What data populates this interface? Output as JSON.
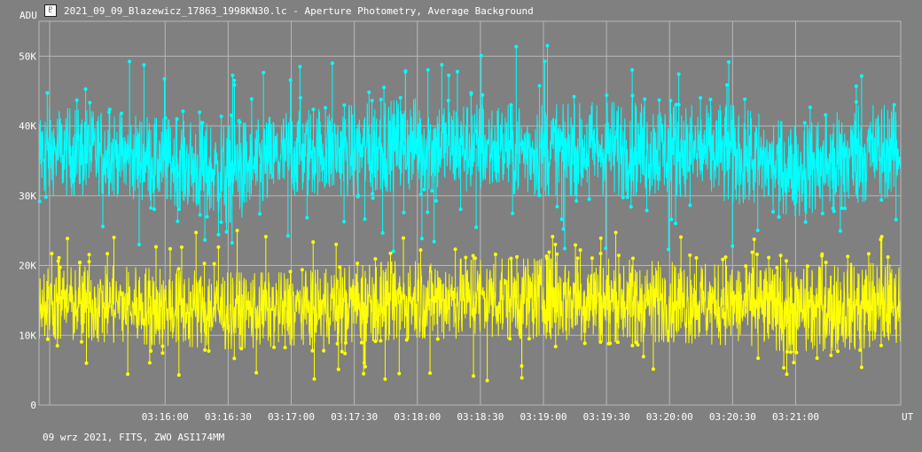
{
  "window": {
    "title": "2021_09_09_Blazewicz_17863_1998KN30.lc - Aperture Photometry, Average Background",
    "icon": "lightcurve-app-icon"
  },
  "footer": {
    "text": "09 wrz 2021, FITS, ZWO ASI174MM"
  },
  "chart_data": {
    "type": "line",
    "title": "2021_09_09_Blazewicz_17863_1998KN30.lc - Aperture Photometry, Average Background",
    "ylabel": "ADU",
    "xlabel": "UT",
    "x_range": [
      "03:15:00",
      "03:21:50"
    ],
    "ylim": [
      0,
      55000
    ],
    "y_ticks": [
      {
        "value": 0,
        "label": "0"
      },
      {
        "value": 10000,
        "label": "10K"
      },
      {
        "value": 20000,
        "label": "20K"
      },
      {
        "value": 30000,
        "label": "30K"
      },
      {
        "value": 40000,
        "label": "40K"
      },
      {
        "value": 50000,
        "label": "50K"
      }
    ],
    "x_ticks": [
      "03:16:00",
      "03:16:30",
      "03:17:00",
      "03:17:30",
      "03:18:00",
      "03:18:30",
      "03:19:00",
      "03:19:30",
      "03:20:00",
      "03:20:30",
      "03:21:00"
    ],
    "grid": true,
    "series": [
      {
        "color": "#00ffff",
        "mean": 35000,
        "typical_range": [
          28000,
          42000
        ],
        "extremes": [
          22000,
          51500
        ],
        "envelope_times": [
          "03:15:00",
          "03:15:30",
          "03:16:00",
          "03:16:30",
          "03:17:00",
          "03:17:30",
          "03:18:00",
          "03:18:30",
          "03:19:00",
          "03:19:30",
          "03:20:00",
          "03:20:30",
          "03:21:00",
          "03:21:30",
          "03:21:50"
        ],
        "envelope_min": [
          30000,
          30000,
          29000,
          26000,
          30000,
          30000,
          31000,
          30500,
          30000,
          30000,
          30000,
          29000,
          27000,
          29000,
          30000
        ],
        "envelope_max": [
          43000,
          42000,
          41000,
          40000,
          42000,
          43000,
          44000,
          43000,
          43000,
          43500,
          43000,
          43000,
          40000,
          43000,
          43000
        ]
      },
      {
        "color": "#ffff00",
        "mean": 14500,
        "typical_range": [
          9000,
          20000
        ],
        "extremes": [
          3500,
          25000
        ],
        "envelope_times": [
          "03:15:00",
          "03:15:30",
          "03:16:00",
          "03:16:30",
          "03:17:00",
          "03:17:30",
          "03:18:00",
          "03:18:30",
          "03:19:00",
          "03:19:30",
          "03:20:00",
          "03:20:30",
          "03:21:00",
          "03:21:30",
          "03:21:50"
        ],
        "envelope_min": [
          9500,
          9000,
          8500,
          8000,
          8500,
          9000,
          9500,
          9500,
          9500,
          9000,
          9000,
          8500,
          7500,
          8000,
          9000
        ],
        "envelope_max": [
          19500,
          20000,
          19500,
          19000,
          19000,
          20000,
          21000,
          21000,
          21000,
          21000,
          20500,
          20000,
          19500,
          20500,
          20000
        ]
      }
    ]
  }
}
